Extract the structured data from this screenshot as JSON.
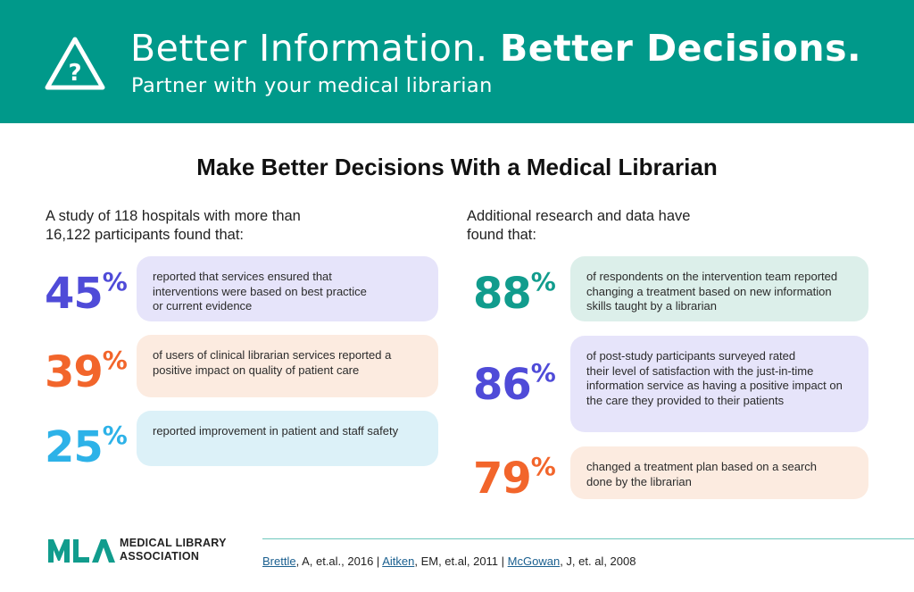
{
  "banner": {
    "title_regular": "Better Information.",
    "title_bold": "Better Decisions.",
    "subtitle": "Partner with your medical librarian",
    "icon": "warning-question-icon",
    "color": "#00998a"
  },
  "heading": "Make Better Decisions With a Medical Librarian",
  "left": {
    "intro": "A study of 118 hospitals with more than 16,122 participants found that:",
    "stats": [
      {
        "value": "45",
        "unit": "%",
        "text": "reported that services ensured that\ninterventions were based on best practice\nor current evidence",
        "color": "#4f4bd8",
        "box_color": "#e6e4fa"
      },
      {
        "value": "39",
        "unit": "%",
        "text": "of users of clinical librarian services reported a\npositive impact on quality of patient care",
        "color": "#f2652b",
        "box_color": "#fcebe0"
      },
      {
        "value": "25",
        "unit": "%",
        "text": "reported improvement in patient and staff safety",
        "color": "#2db2e8",
        "box_color": "#dcf1f8"
      }
    ]
  },
  "right": {
    "intro": "Additional research and data have found that:",
    "stats": [
      {
        "value": "88",
        "unit": "%",
        "text": "of respondents on the intervention team reported\nchanging a treatment based on new information\nskills taught by a librarian",
        "color": "#119c8d",
        "box_color": "#dcefea"
      },
      {
        "value": "86",
        "unit": "%",
        "text": "of post-study participants surveyed rated\ntheir level of satisfaction with the just-in-time\ninformation service as having a positive impact on\nthe care they provided to their patients",
        "color": "#4f4bd8",
        "box_color": "#e6e4fa"
      },
      {
        "value": "79",
        "unit": "%",
        "text": "changed a treatment plan based on a search\ndone by the librarian",
        "color": "#f2652b",
        "box_color": "#fcebe0"
      }
    ]
  },
  "footer": {
    "logo_icon": "mla-logo-icon",
    "org_name": "MEDICAL LIBRARY\nASSOCIATION",
    "citations": [
      {
        "link": "Brettle",
        "rest": ", A, et.al., 2016 | "
      },
      {
        "link": "Aitken",
        "rest": ", EM, et.al, 2011 | "
      },
      {
        "link": "McGowan",
        "rest": ", J,  et. al, 2008"
      }
    ]
  }
}
